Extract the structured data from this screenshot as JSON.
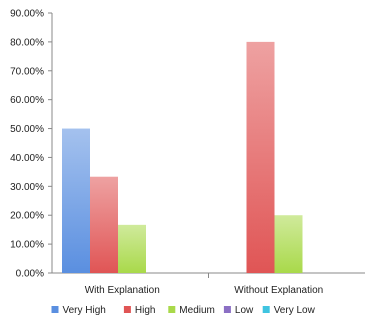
{
  "chart_data": {
    "type": "bar",
    "categories": [
      "With Explanation",
      "Without Explanation"
    ],
    "series": [
      {
        "name": "Very High",
        "values": [
          50.0,
          0
        ],
        "color": "#5a8fe0"
      },
      {
        "name": "High",
        "values": [
          33.33,
          80.0
        ],
        "color": "#e05555"
      },
      {
        "name": "Medium",
        "values": [
          16.67,
          20.0
        ],
        "color": "#a9d94a"
      },
      {
        "name": "Low",
        "values": [
          0,
          0
        ],
        "color": "#8b6fc4"
      },
      {
        "name": "Very Low",
        "values": [
          0,
          0
        ],
        "color": "#3fc4e0"
      }
    ],
    "y_ticks": [
      "0.00%",
      "10.00%",
      "20.00%",
      "30.00%",
      "40.00%",
      "50.00%",
      "60.00%",
      "70.00%",
      "80.00%",
      "90.00%"
    ],
    "ylim": [
      0,
      90
    ],
    "grid": false,
    "legend_position": "bottom"
  }
}
